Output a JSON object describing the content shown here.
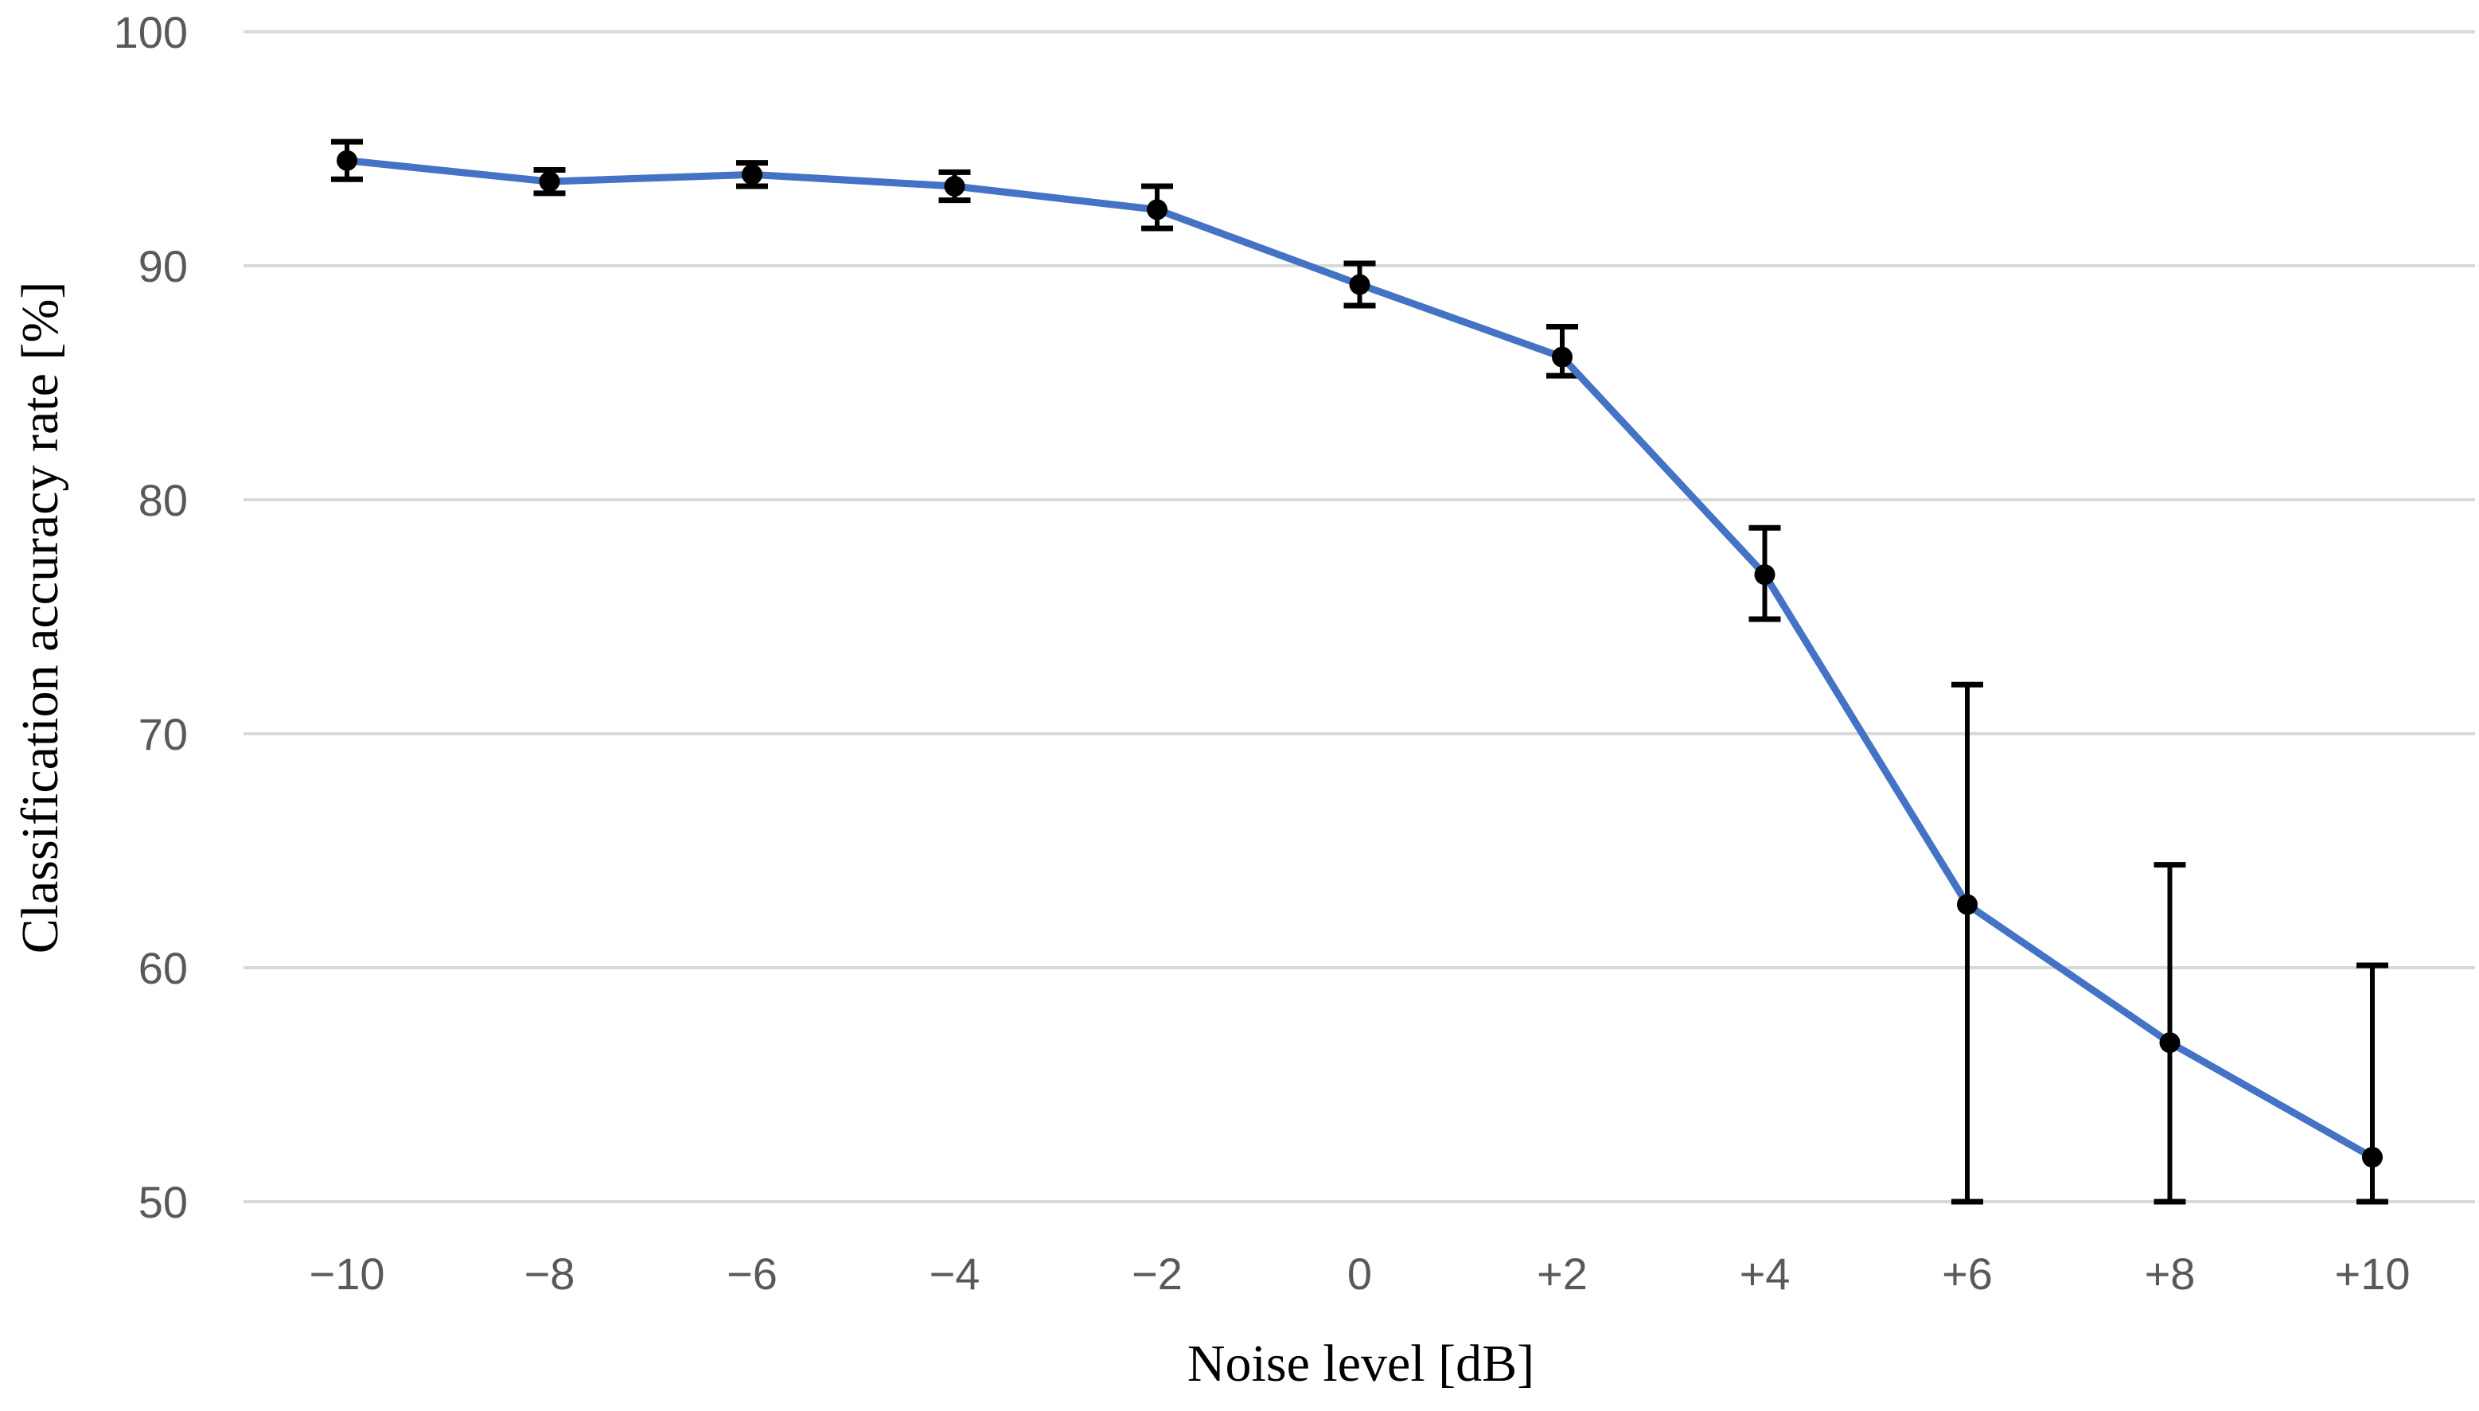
{
  "chart_data": {
    "type": "line",
    "xlabel": "Noise level [dB]",
    "ylabel": "Classification accuracy rate [%]",
    "ylim": [
      50,
      100
    ],
    "yticks": [
      50,
      60,
      70,
      80,
      90,
      100
    ],
    "grid": true,
    "categories": [
      "−10",
      "−8",
      "−6",
      "−4",
      "−2",
      "0",
      "+2",
      "+4",
      "+6",
      "+8",
      "+10"
    ],
    "series": [
      {
        "values": [
          94.5,
          93.6,
          93.9,
          93.4,
          92.4,
          89.2,
          86.1,
          76.8,
          62.7,
          56.8,
          51.9
        ],
        "error_low": [
          93.7,
          93.1,
          93.4,
          92.8,
          91.6,
          88.3,
          85.3,
          74.9,
          50.0,
          50.0,
          50.0
        ],
        "error_high": [
          95.3,
          94.1,
          94.4,
          94.0,
          93.4,
          90.1,
          87.4,
          78.8,
          72.1,
          64.4,
          60.1
        ]
      }
    ],
    "colors": {
      "line": "#4472C4",
      "marker": "#000000",
      "error_bar": "#000000",
      "grid": "#D9D9D9"
    }
  }
}
